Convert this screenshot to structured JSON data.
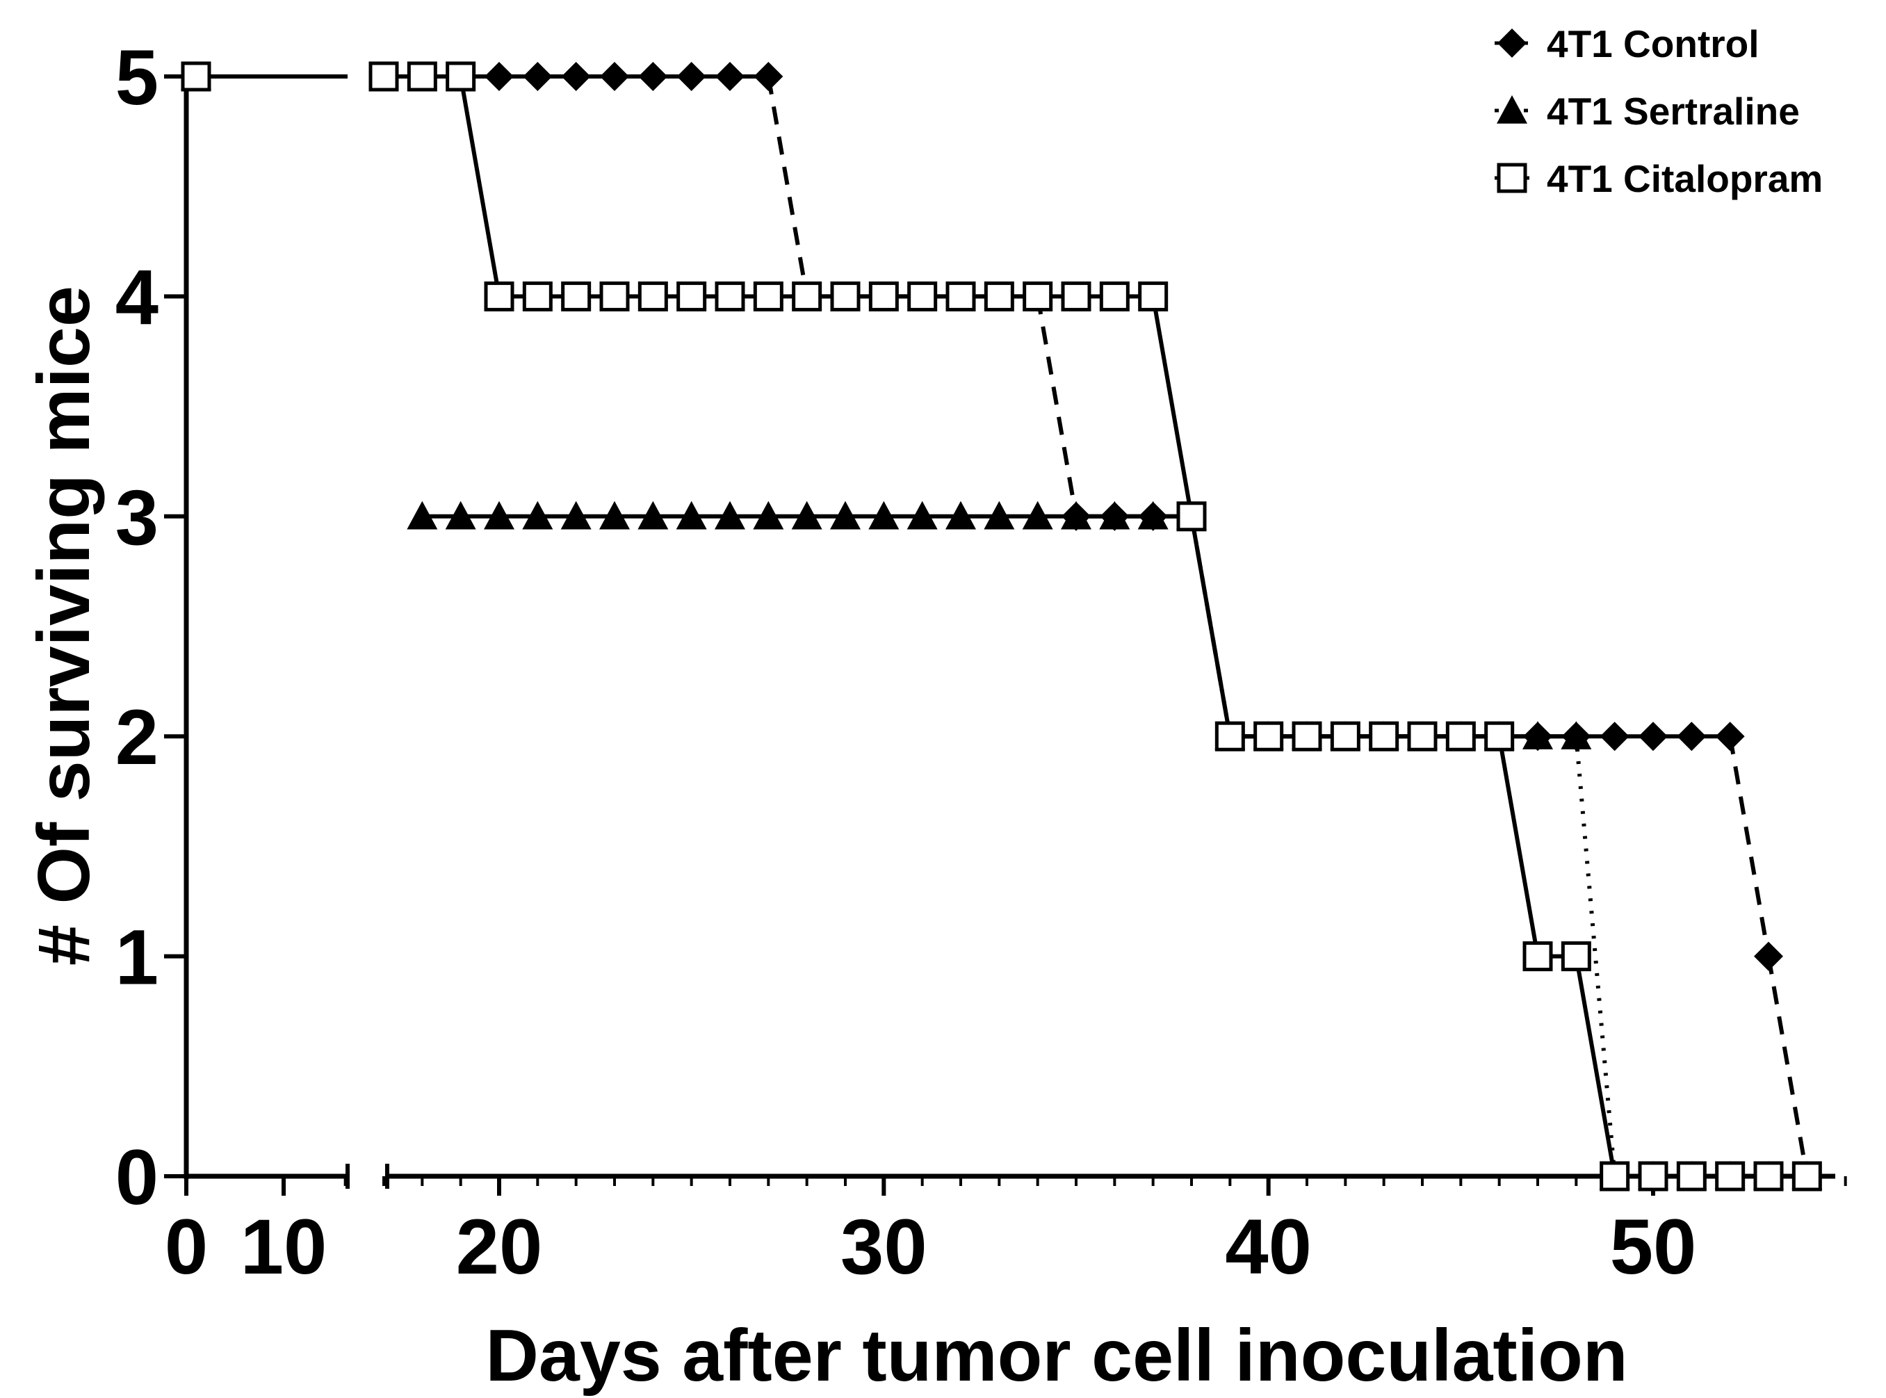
{
  "chart_data": {
    "type": "line",
    "title": "",
    "xlabel": "Days after tumor cell inoculation",
    "ylabel": "# Of surviving mice",
    "xlim": [
      0,
      55
    ],
    "ylim": [
      0,
      5
    ],
    "x_axis_break": {
      "segments": [
        [
          0,
          15
        ],
        [
          15,
          55
        ]
      ],
      "left_segment_ticks": [
        0,
        10
      ]
    },
    "xticks": [
      {
        "value": 0,
        "label": "0"
      },
      {
        "value": 10,
        "label": "10"
      },
      {
        "value": 20,
        "label": "20"
      },
      {
        "value": 30,
        "label": "30"
      },
      {
        "value": 40,
        "label": "40"
      },
      {
        "value": 50,
        "label": "50"
      }
    ],
    "yticks": [
      {
        "value": 0,
        "label": "0"
      },
      {
        "value": 1,
        "label": "1"
      },
      {
        "value": 2,
        "label": "2"
      },
      {
        "value": 3,
        "label": "3"
      },
      {
        "value": 4,
        "label": "4"
      },
      {
        "value": 5,
        "label": "5"
      }
    ],
    "grid": false,
    "legend_position": "top-right",
    "series": [
      {
        "name": "4T1 Control",
        "marker": "diamond",
        "line_style": "dashed",
        "color": "#000000",
        "x": [
          1,
          18,
          19,
          20,
          21,
          22,
          23,
          24,
          25,
          26,
          27,
          28,
          29,
          30,
          31,
          32,
          33,
          34,
          35,
          36,
          37,
          38,
          39,
          40,
          41,
          42,
          43,
          44,
          45,
          46,
          47,
          48,
          49,
          50,
          51,
          52,
          53,
          54
        ],
        "y": [
          5,
          5,
          5,
          5,
          5,
          5,
          5,
          5,
          5,
          5,
          5,
          4,
          4,
          4,
          4,
          4,
          4,
          4,
          3,
          3,
          3,
          3,
          2,
          2,
          2,
          2,
          2,
          2,
          2,
          2,
          2,
          2,
          2,
          2,
          2,
          2,
          1,
          0
        ]
      },
      {
        "name": "4T1 Sertraline",
        "marker": "triangle",
        "line_style": "dash-dot",
        "color": "#000000",
        "x": [
          1,
          18,
          19,
          20,
          21,
          22,
          23,
          24,
          25,
          26,
          27,
          28,
          29,
          30,
          31,
          32,
          33,
          34,
          35,
          36,
          37,
          38,
          39,
          40,
          41,
          42,
          43,
          44,
          45,
          46,
          47,
          48,
          49,
          50,
          51,
          52,
          53,
          54
        ],
        "y": [
          5,
          3,
          3,
          3,
          3,
          3,
          3,
          3,
          3,
          3,
          3,
          3,
          3,
          3,
          3,
          3,
          3,
          3,
          3,
          3,
          3,
          3,
          2,
          2,
          2,
          2,
          2,
          2,
          2,
          2,
          2,
          2,
          0,
          0,
          0,
          0,
          0,
          0
        ]
      },
      {
        "name": "4T1 Citalopram",
        "marker": "open-square",
        "line_style": "solid",
        "color": "#000000",
        "x": [
          1,
          17,
          18,
          19,
          20,
          21,
          22,
          23,
          24,
          25,
          26,
          27,
          28,
          29,
          30,
          31,
          32,
          33,
          34,
          35,
          36,
          37,
          38,
          39,
          40,
          41,
          42,
          43,
          44,
          45,
          46,
          47,
          48,
          49,
          50,
          51,
          52,
          53,
          54
        ],
        "y": [
          5,
          5,
          5,
          5,
          4,
          4,
          4,
          4,
          4,
          4,
          4,
          4,
          4,
          4,
          4,
          4,
          4,
          4,
          4,
          4,
          4,
          4,
          3,
          2,
          2,
          2,
          2,
          2,
          2,
          2,
          2,
          1,
          1,
          0,
          0,
          0,
          0,
          0,
          0
        ]
      }
    ]
  }
}
